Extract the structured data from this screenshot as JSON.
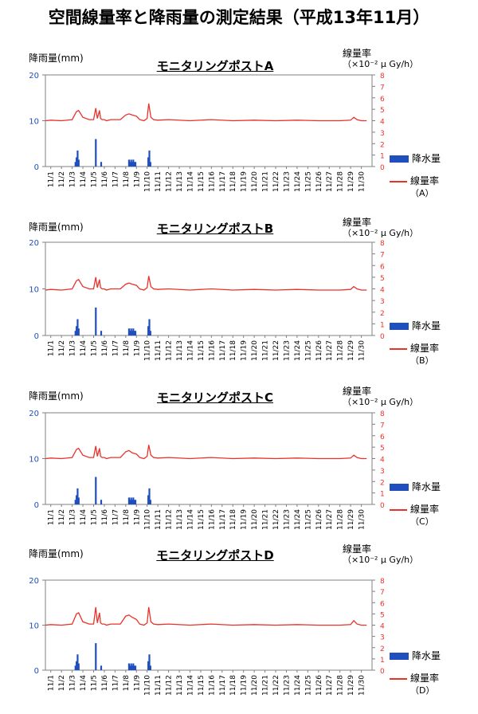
{
  "title": "空間線量率と降雨量の測定結果（平成13年11月）",
  "labels": {
    "rain_axis": "降雨量(mm)",
    "rate_axis": "線量率",
    "rate_unit": "（×10⁻² μ Gy/h）",
    "legend_rain": "降水量",
    "legend_rate": "線量率"
  },
  "colors": {
    "rain": "#1f4fbf",
    "rate": "#e8322a",
    "left_axis_ticks": "#1f4fbf",
    "right_axis_ticks": "#e8322a"
  },
  "panels": [
    {
      "title": "モニタリングポストA",
      "legend_station": "（A）"
    },
    {
      "title": "モニタリングポストB",
      "legend_station": "（B）"
    },
    {
      "title": "モニタリングポストC",
      "legend_station": "（C）"
    },
    {
      "title": "モニタリングポストD",
      "legend_station": "（D）"
    }
  ],
  "chart_data": [
    {
      "type": "bar+line",
      "title": "モニタリングポストA",
      "categories": [
        "11/1",
        "11/2",
        "11/3",
        "11/4",
        "11/5",
        "11/6",
        "11/7",
        "11/8",
        "11/9",
        "11/10",
        "11/11",
        "11/12",
        "11/13",
        "11/14",
        "11/15",
        "11/16",
        "11/17",
        "11/18",
        "11/19",
        "11/20",
        "11/21",
        "11/22",
        "11/23",
        "11/24",
        "11/25",
        "11/26",
        "11/27",
        "11/28",
        "11/29",
        "11/30"
      ],
      "left_axis": {
        "label": "降雨量(mm)",
        "ylim": [
          0,
          20
        ],
        "ticks": [
          0,
          10,
          20
        ]
      },
      "right_axis": {
        "label": "線量率 （×10⁻² μ Gy/h）",
        "ylim": [
          0,
          8
        ],
        "ticks": [
          0,
          1,
          2,
          3,
          4,
          5,
          6,
          7,
          8
        ]
      },
      "series": [
        {
          "name": "降水量",
          "kind": "bar",
          "x": [
            3.3,
            3.4,
            3.5,
            3.6,
            5.2,
            5.7,
            8.3,
            8.4,
            8.5,
            8.6,
            8.7,
            8.8,
            8.9,
            10.1,
            10.2,
            10.3
          ],
          "values": [
            1.0,
            2.0,
            3.5,
            1.5,
            6.0,
            1.0,
            1.5,
            1.0,
            1.5,
            1.0,
            1.5,
            1.0,
            1.0,
            2.0,
            3.5,
            1.0
          ]
        },
        {
          "name": "線量率",
          "kind": "line",
          "x": [
            0.5,
            1,
            2,
            3,
            3.4,
            3.6,
            4,
            4.6,
            5.0,
            5.2,
            5.35,
            5.55,
            5.65,
            5.8,
            6.0,
            6.2,
            6.6,
            7.5,
            8.0,
            8.3,
            8.6,
            9.0,
            9.3,
            9.7,
            10.0,
            10.15,
            10.35,
            10.6,
            11,
            12,
            14,
            16,
            18,
            20,
            22,
            24,
            26,
            28,
            29.0,
            29.3,
            29.6,
            30.0,
            30.5
          ],
          "values": [
            4.0,
            4.05,
            4.0,
            4.1,
            4.8,
            4.9,
            4.3,
            4.1,
            4.1,
            5.1,
            4.2,
            4.9,
            4.2,
            4.1,
            4.1,
            4.0,
            4.1,
            4.1,
            4.5,
            4.6,
            4.5,
            4.4,
            4.1,
            4.0,
            4.2,
            5.5,
            4.3,
            4.1,
            4.05,
            4.1,
            4.0,
            4.1,
            4.0,
            4.05,
            4.0,
            4.05,
            4.0,
            4.0,
            4.05,
            4.3,
            4.1,
            4.0,
            4.0
          ]
        }
      ]
    },
    {
      "type": "bar+line",
      "title": "モニタリングポストB",
      "categories": [
        "11/1",
        "11/2",
        "11/3",
        "11/4",
        "11/5",
        "11/6",
        "11/7",
        "11/8",
        "11/9",
        "11/10",
        "11/11",
        "11/12",
        "11/13",
        "11/14",
        "11/15",
        "11/16",
        "11/17",
        "11/18",
        "11/19",
        "11/20",
        "11/21",
        "11/22",
        "11/23",
        "11/24",
        "11/25",
        "11/26",
        "11/27",
        "11/28",
        "11/29",
        "11/30"
      ],
      "left_axis": {
        "label": "降雨量(mm)",
        "ylim": [
          0,
          20
        ],
        "ticks": [
          0,
          10,
          20
        ]
      },
      "right_axis": {
        "label": "線量率 （×10⁻² μ Gy/h）",
        "ylim": [
          0,
          8
        ],
        "ticks": [
          0,
          1,
          2,
          3,
          4,
          5,
          6,
          7,
          8
        ]
      },
      "series": [
        {
          "name": "降水量",
          "kind": "bar",
          "x": [
            3.3,
            3.4,
            3.5,
            3.6,
            5.2,
            5.7,
            8.3,
            8.4,
            8.5,
            8.6,
            8.7,
            8.8,
            8.9,
            10.1,
            10.2,
            10.3
          ],
          "values": [
            1.0,
            2.0,
            3.5,
            1.5,
            6.0,
            1.0,
            1.5,
            1.0,
            1.5,
            1.0,
            1.5,
            1.0,
            1.0,
            2.0,
            3.5,
            1.0
          ]
        },
        {
          "name": "線量率",
          "kind": "line",
          "x": [
            0.5,
            1,
            2,
            3,
            3.4,
            3.6,
            4,
            4.6,
            5.0,
            5.2,
            5.35,
            5.55,
            5.65,
            5.8,
            6.0,
            6.2,
            6.6,
            7.5,
            8.0,
            8.3,
            8.6,
            9.0,
            9.3,
            9.7,
            10.0,
            10.15,
            10.35,
            10.6,
            11,
            12,
            14,
            16,
            18,
            20,
            22,
            24,
            26,
            28,
            29.0,
            29.3,
            29.6,
            30.0,
            30.5
          ],
          "values": [
            3.9,
            3.95,
            3.9,
            4.0,
            4.7,
            4.8,
            4.2,
            4.0,
            4.0,
            5.0,
            4.1,
            4.8,
            4.1,
            4.0,
            4.0,
            3.9,
            4.0,
            4.0,
            4.4,
            4.5,
            4.4,
            4.3,
            4.0,
            3.9,
            4.1,
            5.1,
            4.2,
            4.0,
            3.95,
            4.0,
            3.9,
            4.0,
            3.9,
            3.95,
            3.9,
            3.95,
            3.9,
            3.9,
            3.95,
            4.2,
            4.0,
            3.9,
            3.9
          ]
        }
      ]
    },
    {
      "type": "bar+line",
      "title": "モニタリングポストC",
      "categories": [
        "11/1",
        "11/2",
        "11/3",
        "11/4",
        "11/5",
        "11/6",
        "11/7",
        "11/8",
        "11/9",
        "11/10",
        "11/11",
        "11/12",
        "11/13",
        "11/14",
        "11/15",
        "11/16",
        "11/17",
        "11/18",
        "11/19",
        "11/20",
        "11/21",
        "11/22",
        "11/23",
        "11/24",
        "11/25",
        "11/26",
        "11/27",
        "11/28",
        "11/29",
        "11/30"
      ],
      "left_axis": {
        "label": "降雨量(mm)",
        "ylim": [
          0,
          20
        ],
        "ticks": [
          0,
          10,
          20
        ]
      },
      "right_axis": {
        "label": "線量率 （×10⁻² μ Gy/h）",
        "ylim": [
          0,
          8
        ],
        "ticks": [
          0,
          1,
          2,
          3,
          4,
          5,
          6,
          7,
          8
        ]
      },
      "series": [
        {
          "name": "降水量",
          "kind": "bar",
          "x": [
            3.3,
            3.4,
            3.5,
            3.6,
            5.2,
            5.7,
            8.3,
            8.4,
            8.5,
            8.6,
            8.7,
            8.8,
            8.9,
            10.1,
            10.2,
            10.3
          ],
          "values": [
            1.0,
            2.0,
            3.5,
            1.5,
            6.0,
            1.0,
            1.5,
            1.0,
            1.5,
            1.0,
            1.5,
            1.0,
            1.0,
            2.0,
            3.5,
            1.0
          ]
        },
        {
          "name": "線量率",
          "kind": "line",
          "x": [
            0.5,
            1,
            2,
            3,
            3.4,
            3.6,
            4,
            4.6,
            5.0,
            5.2,
            5.35,
            5.55,
            5.65,
            5.8,
            6.0,
            6.2,
            6.6,
            7.5,
            8.0,
            8.3,
            8.6,
            9.0,
            9.3,
            9.7,
            10.0,
            10.15,
            10.35,
            10.6,
            11,
            12,
            14,
            16,
            18,
            20,
            22,
            24,
            26,
            28,
            29.0,
            29.3,
            29.6,
            30.0,
            30.5
          ],
          "values": [
            4.0,
            4.05,
            4.0,
            4.1,
            4.8,
            4.9,
            4.3,
            4.1,
            4.1,
            5.1,
            4.2,
            4.9,
            4.2,
            4.1,
            4.1,
            4.0,
            4.1,
            4.1,
            4.6,
            4.7,
            4.5,
            4.4,
            4.1,
            4.0,
            4.2,
            5.2,
            4.3,
            4.1,
            4.05,
            4.1,
            4.0,
            4.1,
            4.0,
            4.05,
            4.0,
            4.05,
            4.0,
            4.0,
            4.05,
            4.3,
            4.1,
            4.0,
            4.0
          ]
        }
      ]
    },
    {
      "type": "bar+line",
      "title": "モニタリングポストD",
      "categories": [
        "11/1",
        "11/2",
        "11/3",
        "11/4",
        "11/5",
        "11/6",
        "11/7",
        "11/8",
        "11/9",
        "11/10",
        "11/11",
        "11/12",
        "11/13",
        "11/14",
        "11/15",
        "11/16",
        "11/17",
        "11/18",
        "11/19",
        "11/20",
        "11/21",
        "11/22",
        "11/23",
        "11/24",
        "11/25",
        "11/26",
        "11/27",
        "11/28",
        "11/29",
        "11/30"
      ],
      "left_axis": {
        "label": "降雨量(mm)",
        "ylim": [
          0,
          20
        ],
        "ticks": [
          0,
          10,
          20
        ]
      },
      "right_axis": {
        "label": "線量率 （×10⁻² μ Gy/h）",
        "ylim": [
          0,
          8
        ],
        "ticks": [
          0,
          1,
          2,
          3,
          4,
          5,
          6,
          7,
          8
        ]
      },
      "series": [
        {
          "name": "降水量",
          "kind": "bar",
          "x": [
            3.3,
            3.4,
            3.5,
            3.6,
            5.2,
            5.7,
            8.3,
            8.4,
            8.5,
            8.6,
            8.7,
            8.8,
            8.9,
            10.1,
            10.2,
            10.3
          ],
          "values": [
            1.0,
            2.0,
            3.5,
            1.5,
            6.0,
            1.0,
            1.5,
            1.0,
            1.5,
            1.0,
            1.5,
            1.0,
            1.0,
            2.0,
            3.5,
            1.0
          ]
        },
        {
          "name": "線量率",
          "kind": "line",
          "x": [
            0.5,
            1,
            2,
            3,
            3.4,
            3.6,
            4,
            4.6,
            5.0,
            5.2,
            5.35,
            5.55,
            5.65,
            5.8,
            6.0,
            6.2,
            6.6,
            7.5,
            8.0,
            8.3,
            8.6,
            9.0,
            9.3,
            9.7,
            10.0,
            10.15,
            10.35,
            10.6,
            11,
            12,
            14,
            16,
            18,
            20,
            22,
            24,
            26,
            28,
            29.0,
            29.3,
            29.6,
            30.0,
            30.5
          ],
          "values": [
            4.0,
            4.05,
            4.0,
            4.1,
            5.0,
            5.1,
            4.3,
            4.1,
            4.1,
            5.6,
            4.2,
            5.1,
            4.2,
            4.1,
            4.1,
            4.0,
            4.1,
            4.1,
            4.8,
            4.9,
            4.7,
            4.5,
            4.1,
            4.0,
            4.2,
            5.6,
            4.3,
            4.1,
            4.05,
            4.1,
            4.0,
            4.1,
            4.0,
            4.05,
            4.0,
            4.05,
            4.0,
            4.0,
            4.05,
            4.4,
            4.1,
            4.0,
            4.0
          ]
        }
      ]
    }
  ]
}
